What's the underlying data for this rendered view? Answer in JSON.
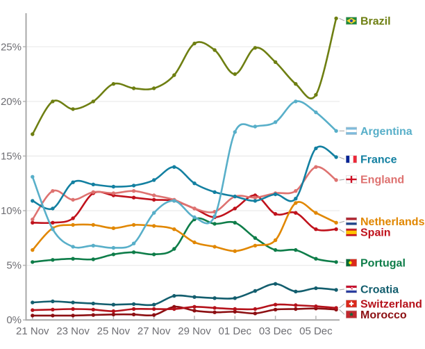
{
  "chart_data": {
    "type": "line",
    "title": "",
    "xlabel": "",
    "ylabel": "",
    "y_unit": "%",
    "ylim": [
      0,
      28
    ],
    "grid": "horizontal",
    "legend_position": "right-of-line-ends",
    "y_tick_labels": [
      "0%",
      "5%",
      "10%",
      "15%",
      "20%",
      "25%"
    ],
    "y_tick_values": [
      0,
      5,
      10,
      15,
      20,
      25
    ],
    "x_tick_labels": [
      "21 Nov",
      "23 Nov",
      "25 Nov",
      "27 Nov",
      "29 Nov",
      "01 Dec",
      "03 Dec",
      "05 Dec"
    ],
    "x": [
      "21 Nov",
      "22 Nov",
      "23 Nov",
      "24 Nov",
      "25 Nov",
      "26 Nov",
      "27 Nov",
      "28 Nov",
      "29 Nov",
      "30 Nov",
      "01 Dec",
      "02 Dec",
      "03 Dec",
      "04 Dec",
      "05 Dec",
      "06 Dec"
    ],
    "series": [
      {
        "name": "Brazil",
        "flag": "brazil",
        "color": "#6E7F12",
        "values": [
          17.0,
          20.0,
          19.3,
          20.0,
          21.6,
          21.2,
          21.2,
          22.4,
          25.3,
          24.7,
          22.5,
          24.9,
          23.6,
          21.6,
          20.6,
          27.6
        ]
      },
      {
        "name": "Argentina",
        "flag": "argentina",
        "color": "#58AFC9",
        "values": [
          13.1,
          8.3,
          6.7,
          6.8,
          6.6,
          7.0,
          9.8,
          10.9,
          9.4,
          9.5,
          17.2,
          17.7,
          18.1,
          20.0,
          19.0,
          17.3
        ]
      },
      {
        "name": "France",
        "flag": "france",
        "color": "#1380A1",
        "values": [
          10.9,
          10.2,
          12.6,
          12.4,
          12.2,
          12.3,
          12.8,
          14.0,
          12.5,
          11.7,
          11.3,
          10.9,
          11.5,
          11.1,
          15.7,
          14.9
        ]
      },
      {
        "name": "England",
        "flag": "england",
        "color": "#DE7270",
        "values": [
          9.2,
          11.8,
          11.0,
          11.7,
          11.6,
          11.8,
          11.4,
          11.0,
          10.2,
          9.9,
          11.3,
          11.2,
          11.6,
          11.8,
          14.0,
          12.8
        ]
      },
      {
        "name": "Netherlands",
        "flag": "netherlands",
        "color": "#E18701",
        "values": [
          6.4,
          8.4,
          8.7,
          8.7,
          8.4,
          8.7,
          8.6,
          8.3,
          7.1,
          6.7,
          6.3,
          6.8,
          7.3,
          10.7,
          9.8,
          8.9
        ]
      },
      {
        "name": "Spain",
        "flag": "spain",
        "color": "#C0121C",
        "values": [
          8.9,
          8.9,
          9.3,
          11.6,
          11.4,
          11.2,
          11.0,
          10.9,
          10.2,
          9.4,
          10.2,
          11.4,
          9.7,
          9.8,
          8.3,
          8.3
        ]
      },
      {
        "name": "Portugal",
        "flag": "portugal",
        "color": "#0E7D49",
        "values": [
          5.3,
          5.5,
          5.6,
          5.55,
          6.0,
          6.2,
          6.0,
          6.5,
          9.2,
          8.8,
          8.9,
          7.5,
          6.4,
          6.4,
          5.6,
          5.3
        ]
      },
      {
        "name": "Croatia",
        "flag": "croatia",
        "color": "#135E6E",
        "values": [
          1.6,
          1.7,
          1.6,
          1.5,
          1.4,
          1.45,
          1.4,
          2.2,
          2.1,
          2.0,
          2.0,
          2.65,
          3.3,
          2.6,
          2.9,
          2.75
        ]
      },
      {
        "name": "Switzerland",
        "flag": "switzerland",
        "color": "#B5121B",
        "values": [
          0.9,
          0.95,
          1.0,
          0.95,
          0.8,
          1.0,
          1.0,
          1.0,
          1.2,
          1.1,
          1.0,
          1.0,
          1.4,
          1.35,
          1.25,
          1.1
        ]
      },
      {
        "name": "Morocco",
        "flag": "morocco",
        "color": "#8C0F12",
        "values": [
          0.4,
          0.4,
          0.4,
          0.45,
          0.5,
          0.5,
          0.45,
          1.2,
          0.85,
          0.7,
          0.75,
          0.6,
          0.95,
          1.0,
          1.05,
          0.95
        ]
      }
    ]
  }
}
